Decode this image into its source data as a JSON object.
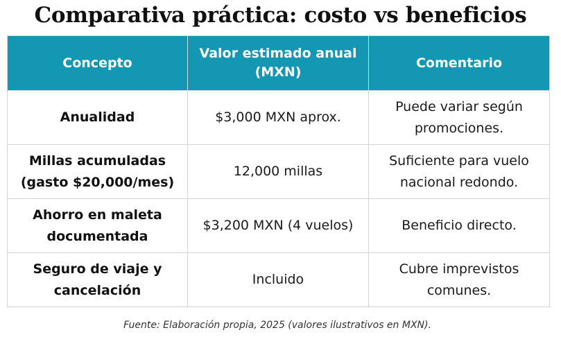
{
  "title": "Comparativa práctica: costo vs beneficios",
  "table": {
    "headers": [
      "Concepto",
      "Valor estimado anual (MXN)",
      "Comentario"
    ],
    "rows": [
      {
        "concept": "Anualidad",
        "value": "$3,000 MXN aprox.",
        "comment": "Puede variar según promociones."
      },
      {
        "concept": "Millas acumuladas (gasto $20,000/mes)",
        "value": "12,000 millas",
        "comment": "Suficiente para vuelo nacional redondo."
      },
      {
        "concept": "Ahorro en maleta documentada",
        "value": "$3,200 MXN (4 vuelos)",
        "comment": "Beneficio directo."
      },
      {
        "concept": "Seguro de viaje y cancelación",
        "value": "Incluido",
        "comment": "Cubre imprevistos comunes."
      }
    ]
  },
  "footer": "Fuente: Elaboración propia, 2025 (valores ilustrativos en MXN).",
  "colors": {
    "header_bg": "#1497b3",
    "header_text": "#ffffff",
    "border": "#d4d4d4"
  }
}
